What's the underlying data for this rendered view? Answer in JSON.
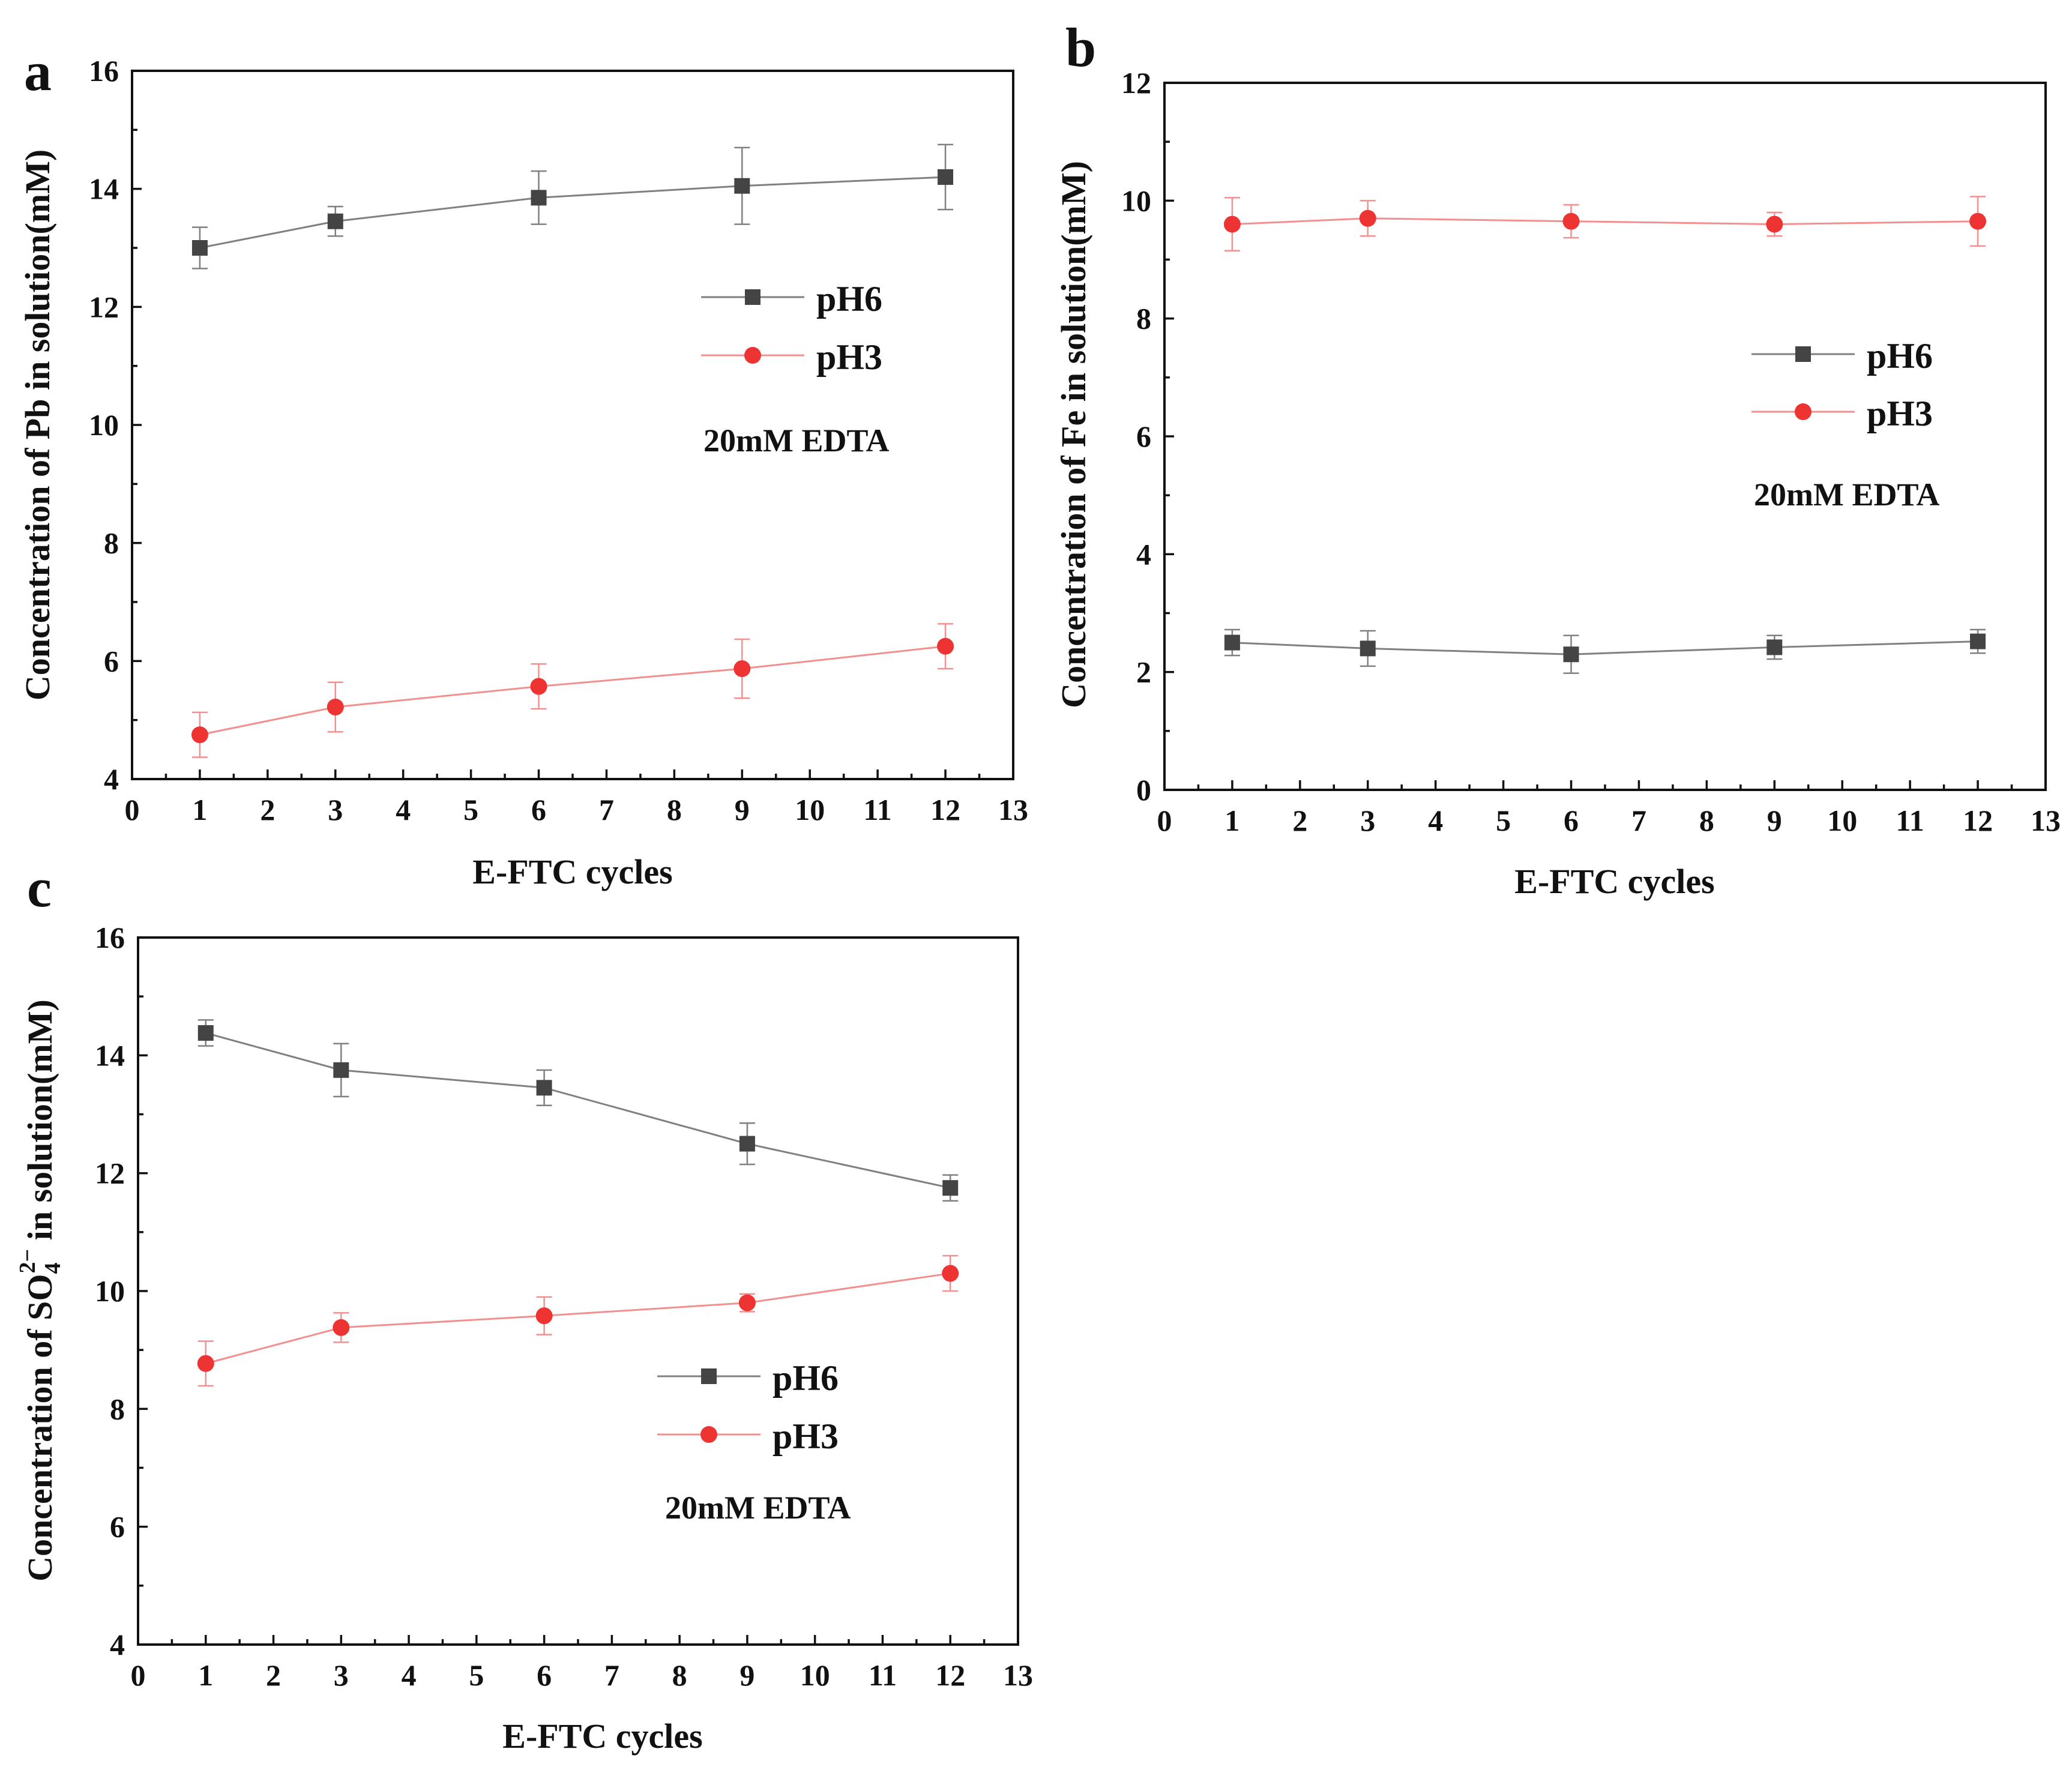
{
  "chart_data": [
    {
      "type": "line",
      "panel_label": "a",
      "title": "",
      "xlabel": "E-FTC cycles",
      "ylabel": "Concentration of Pb in solution(mM)",
      "xlim": [
        0,
        13
      ],
      "ylim": [
        4,
        16
      ],
      "xticks": [
        0,
        1,
        2,
        3,
        4,
        5,
        6,
        7,
        8,
        9,
        10,
        11,
        12,
        13
      ],
      "yticks": [
        4,
        6,
        8,
        10,
        12,
        14,
        16
      ],
      "x": [
        1,
        3,
        6,
        9,
        12
      ],
      "annotation": "20mM EDTA",
      "legend_position": "upper-right",
      "series": [
        {
          "name": "pH6",
          "marker": "square",
          "color": "#444444",
          "line_color": "#808080",
          "values": [
            13.0,
            13.45,
            13.85,
            14.05,
            14.2
          ],
          "errors": [
            0.35,
            0.25,
            0.45,
            0.65,
            0.55
          ]
        },
        {
          "name": "pH3",
          "marker": "circle",
          "color": "#ee3333",
          "line_color": "#f29090",
          "values": [
            4.75,
            5.22,
            5.57,
            5.87,
            6.25
          ],
          "errors": [
            0.38,
            0.42,
            0.38,
            0.5,
            0.38
          ]
        }
      ]
    },
    {
      "type": "line",
      "panel_label": "b",
      "title": "",
      "xlabel": "E-FTC cycles",
      "ylabel": "Concentration of Fe in solution(mM)",
      "xlim": [
        0,
        13
      ],
      "ylim": [
        0,
        12
      ],
      "xticks": [
        0,
        1,
        2,
        3,
        4,
        5,
        6,
        7,
        8,
        9,
        10,
        11,
        12,
        13
      ],
      "yticks": [
        0,
        2,
        4,
        6,
        8,
        10,
        12
      ],
      "x": [
        1,
        3,
        6,
        9,
        12
      ],
      "annotation": "20mM EDTA",
      "legend_position": "right",
      "series": [
        {
          "name": "pH6",
          "marker": "square",
          "color": "#444444",
          "line_color": "#808080",
          "values": [
            2.5,
            2.4,
            2.3,
            2.42,
            2.52
          ],
          "errors": [
            0.22,
            0.3,
            0.32,
            0.2,
            0.2
          ]
        },
        {
          "name": "pH3",
          "marker": "circle",
          "color": "#ee3333",
          "line_color": "#f29090",
          "values": [
            9.6,
            9.7,
            9.65,
            9.6,
            9.65
          ],
          "errors": [
            0.45,
            0.3,
            0.28,
            0.2,
            0.42
          ]
        }
      ]
    },
    {
      "type": "line",
      "panel_label": "c",
      "title": "",
      "xlabel": "E-FTC cycles",
      "ylabel_main": "Concentration of SO",
      "ylabel_subscript": "4",
      "ylabel_superscript": "2−",
      "ylabel_rest": " in solution(mM)",
      "xlim": [
        0,
        13
      ],
      "ylim": [
        4,
        16
      ],
      "xticks": [
        0,
        1,
        2,
        3,
        4,
        5,
        6,
        7,
        8,
        9,
        10,
        11,
        12,
        13
      ],
      "yticks": [
        4,
        6,
        8,
        10,
        12,
        14,
        16
      ],
      "x": [
        1,
        3,
        6,
        9,
        12
      ],
      "annotation": "20mM EDTA",
      "legend_position": "lower-right",
      "series": [
        {
          "name": "pH6",
          "marker": "square",
          "color": "#444444",
          "line_color": "#808080",
          "values": [
            14.38,
            13.75,
            13.45,
            12.5,
            11.75
          ],
          "errors": [
            0.22,
            0.45,
            0.3,
            0.35,
            0.22
          ]
        },
        {
          "name": "pH3",
          "marker": "circle",
          "color": "#ee3333",
          "line_color": "#f29090",
          "values": [
            8.77,
            9.38,
            9.58,
            9.8,
            10.3
          ],
          "errors": [
            0.38,
            0.25,
            0.32,
            0.15,
            0.3
          ]
        }
      ]
    }
  ]
}
